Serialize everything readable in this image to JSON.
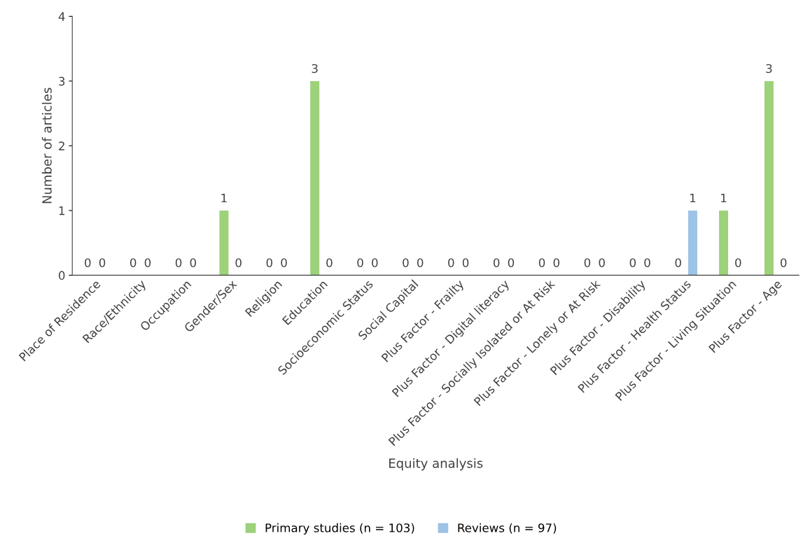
{
  "chart_data": {
    "type": "bar",
    "xlabel": "Equity analysis",
    "ylabel": "Number of articles",
    "categories": [
      "Place of Residence",
      "Race/Ethnicity",
      "Occupation",
      "Gender/Sex",
      "Religion",
      "Education",
      "Socioeconomic Status",
      "Social Capital",
      "Plus Factor - Frailty",
      "Plus Factor - Digital literacy",
      "Plus Factor - Socially Isolated or At Risk",
      "Plus Factor - Lonely or At Risk",
      "Plus Factor - Disability",
      "Plus Factor - Health Status",
      "Plus Factor - Living Situation",
      "Plus Factor - Age"
    ],
    "series": [
      {
        "name": "Primary studies (n = 103)",
        "color": "#9dd17a",
        "values": [
          0,
          0,
          0,
          1,
          0,
          3,
          0,
          0,
          0,
          0,
          0,
          0,
          0,
          0,
          1,
          3
        ]
      },
      {
        "name": "Reviews (n = 97)",
        "color": "#9dc3e6",
        "values": [
          0,
          0,
          0,
          0,
          0,
          0,
          0,
          0,
          0,
          0,
          0,
          0,
          0,
          1,
          0,
          0
        ]
      }
    ],
    "ylim": [
      0,
      4
    ],
    "yticks": [
      0,
      1,
      2,
      3,
      4
    ],
    "grid": false,
    "legend": "bottom",
    "data_labels": true
  }
}
